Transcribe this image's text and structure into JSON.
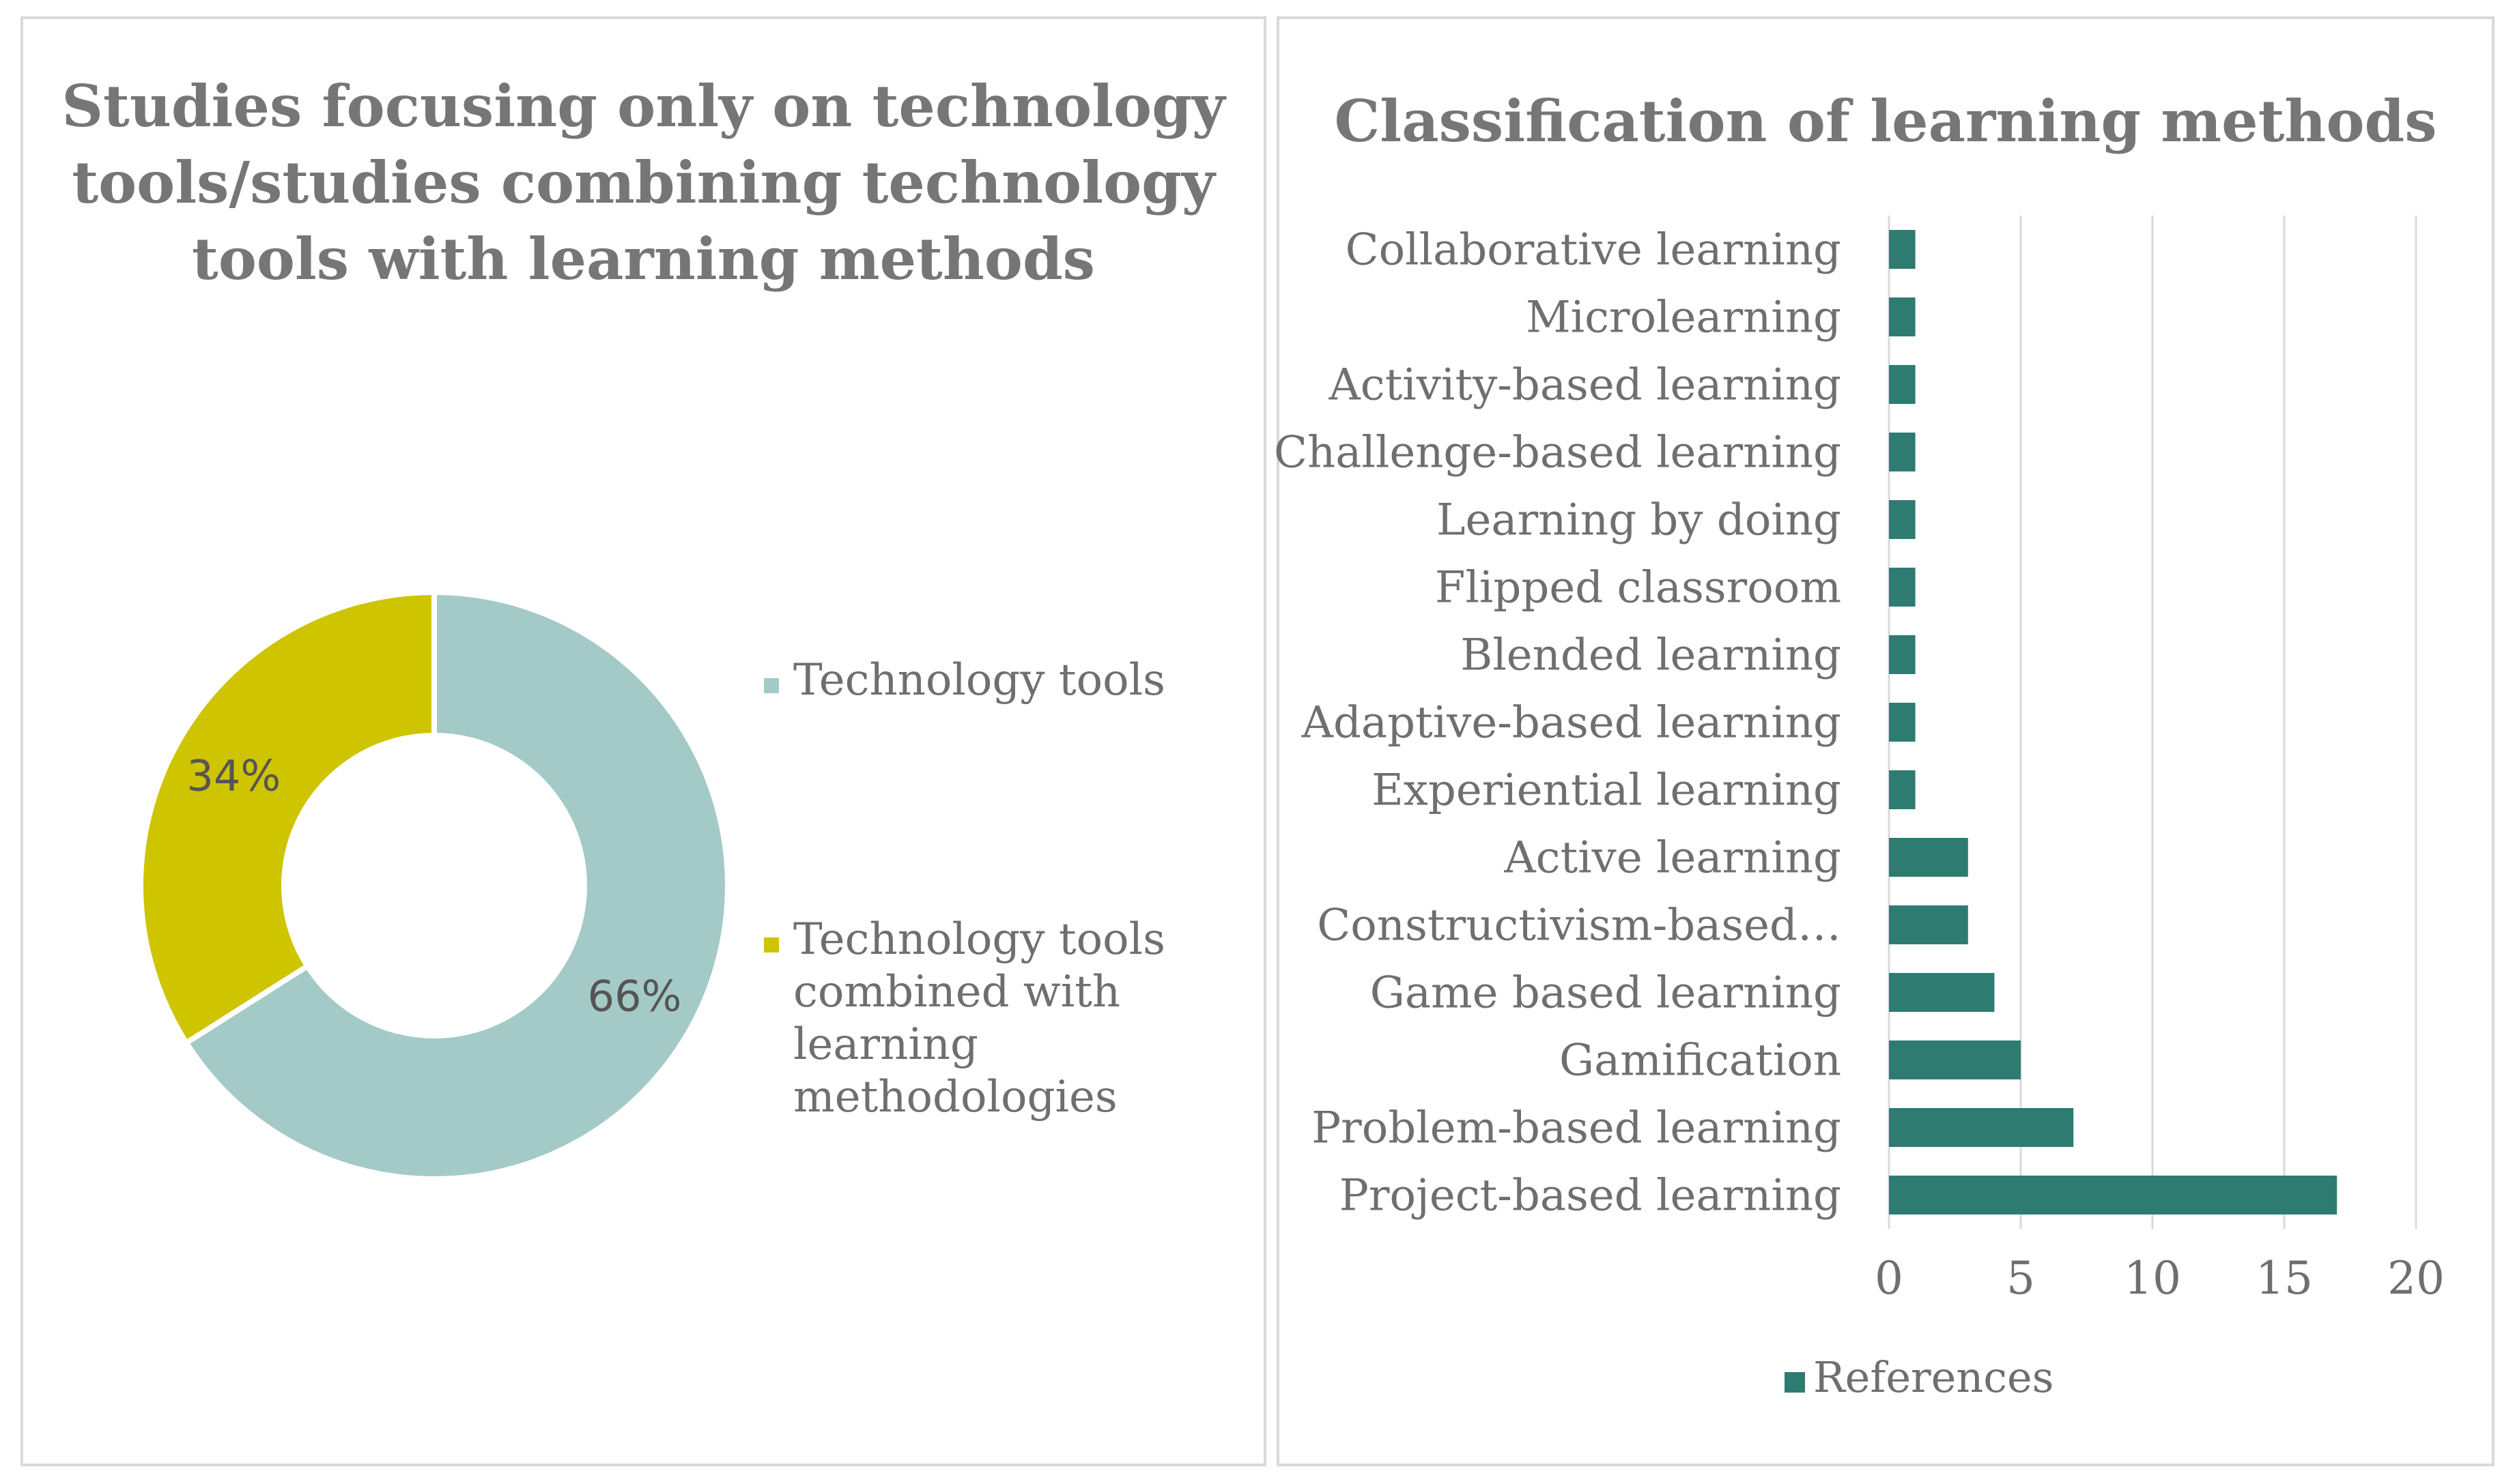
{
  "chart_data": [
    {
      "type": "pie",
      "variant": "donut",
      "title_lines": [
        "Studies focusing only on technology",
        "tools/studies combining technology",
        "tools with learning methods"
      ],
      "slices": [
        {
          "label": "Technology tools",
          "legend_lines": [
            "Technology tools"
          ],
          "value": 66,
          "value_label": "66%",
          "color": "#a3cac6"
        },
        {
          "label": "Technology tools combined with learning methodologies",
          "legend_lines": [
            "Technology tools",
            "combined with",
            "learning",
            "methodologies"
          ],
          "value": 34,
          "value_label": "34%",
          "color": "#cec400"
        }
      ],
      "legend_position": "right"
    },
    {
      "type": "bar",
      "orientation": "horizontal",
      "title": "Classification of learning methods",
      "categories": [
        "Collaborative learning",
        "Microlearning",
        "Activity-based learning",
        "Challenge-based  learning",
        "Learning by doing",
        "Flipped classroom",
        "Blended learning",
        "Adaptive-based learning",
        "Experiential learning",
        "Active learning",
        "Constructivism-based…",
        "Game based learning",
        "Gamification",
        "Problem-based learning",
        "Project-based learning"
      ],
      "series": [
        {
          "name": "References",
          "values": [
            1,
            1,
            1,
            1,
            1,
            1,
            1,
            1,
            1,
            3,
            3,
            4,
            5,
            7,
            17
          ],
          "color": "#2e7b72"
        }
      ],
      "xlim": [
        0,
        20
      ],
      "xticks": [
        "0",
        "5",
        "10",
        "15",
        "20"
      ],
      "grid": true,
      "legend_position": "bottom"
    }
  ],
  "colors": {
    "title": "#767676",
    "label": "#6f6f6f",
    "grid": "#d9d9d9",
    "border": "#d9d9d9"
  }
}
